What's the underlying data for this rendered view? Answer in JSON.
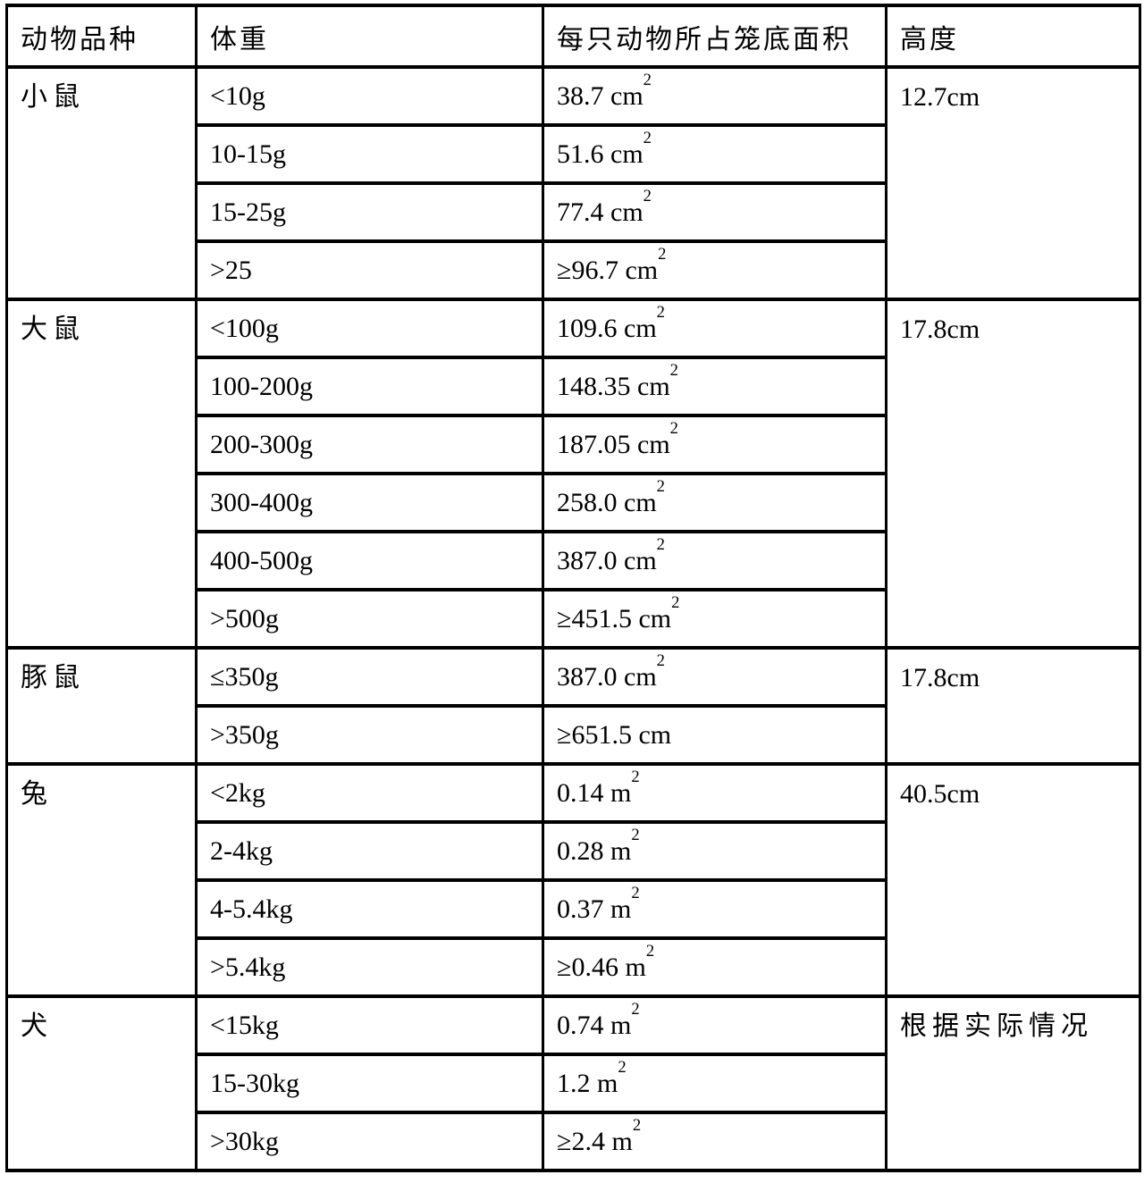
{
  "page": {
    "background": "#ffffff",
    "border_color": "#000000",
    "text_color": "#000000"
  },
  "table": {
    "headers": [
      {
        "label": "动物品种"
      },
      {
        "label": "体重"
      },
      {
        "label": "每只动物所占笼底面积"
      },
      {
        "label": "高度"
      }
    ],
    "groups": [
      {
        "species": "小鼠",
        "height": "12.7cm",
        "rows": [
          {
            "weight": "<10g",
            "area": "38.7 cm",
            "sup": "2"
          },
          {
            "weight": "10-15g",
            "area": "51.6 cm",
            "sup": "2"
          },
          {
            "weight": "15-25g",
            "area": "77.4 cm",
            "sup": "2"
          },
          {
            "weight": ">25",
            "area": "≥96.7 cm",
            "sup": "2"
          }
        ]
      },
      {
        "species": "大鼠",
        "height": "17.8cm",
        "rows": [
          {
            "weight": "<100g",
            "area": "109.6 cm",
            "sup": "2"
          },
          {
            "weight": "100-200g",
            "area": "148.35 cm",
            "sup": "2"
          },
          {
            "weight": "200-300g",
            "area": "187.05 cm",
            "sup": "2"
          },
          {
            "weight": "300-400g",
            "area": "258.0 cm",
            "sup": "2"
          },
          {
            "weight": "400-500g",
            "area": "387.0 cm",
            "sup": "2"
          },
          {
            "weight": ">500g",
            "area": "≥451.5 cm",
            "sup": "2"
          }
        ]
      },
      {
        "species": "豚鼠",
        "height": "17.8cm",
        "rows": [
          {
            "weight": "≤350g",
            "area": "387.0 cm",
            "sup": "2"
          },
          {
            "weight": ">350g",
            "area": "≥651.5 cm",
            "sup": ""
          }
        ]
      },
      {
        "species": "兔",
        "height": "40.5cm",
        "rows": [
          {
            "weight": "<2kg",
            "area": "0.14 m",
            "sup": "2"
          },
          {
            "weight": "2-4kg",
            "area": "0.28 m",
            "sup": "2"
          },
          {
            "weight": "4-5.4kg",
            "area": "0.37 m",
            "sup": "2"
          },
          {
            "weight": ">5.4kg",
            "area": "≥0.46 m",
            "sup": "2"
          }
        ]
      },
      {
        "species": "犬",
        "height": "根据实际情况",
        "rows": [
          {
            "weight": "<15kg",
            "area": "0.74 m",
            "sup": "2"
          },
          {
            "weight": "15-30kg",
            "area": "1.2 m",
            "sup": "2"
          },
          {
            "weight": ">30kg",
            "area": "≥2.4 m",
            "sup": "2"
          }
        ]
      }
    ]
  }
}
